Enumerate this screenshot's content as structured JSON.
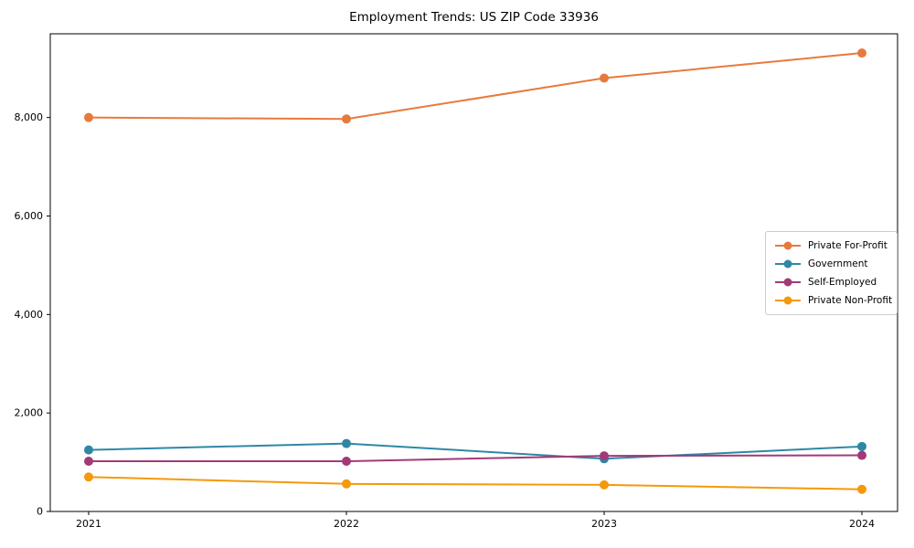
{
  "chart_data": {
    "type": "line",
    "title": "Employment Trends: US ZIP Code 33936",
    "x_tick_labels": [
      "2021",
      "2022",
      "2023",
      "2024"
    ],
    "x": [
      2021,
      2022,
      2023,
      2024
    ],
    "series": [
      {
        "name": "Private For-Profit",
        "color": "#e8793d",
        "values": [
          8000,
          7970,
          8800,
          9310
        ]
      },
      {
        "name": "Government",
        "color": "#2f87a6",
        "values": [
          1250,
          1380,
          1070,
          1320
        ]
      },
      {
        "name": "Self-Employed",
        "color": "#a23a77",
        "values": [
          1020,
          1020,
          1130,
          1140
        ]
      },
      {
        "name": "Private Non-Profit",
        "color": "#f5990b",
        "values": [
          700,
          560,
          540,
          450
        ]
      }
    ],
    "xlabel": "",
    "ylabel": "",
    "ylim": [
      0,
      9700
    ],
    "yticks": [
      0,
      2000,
      4000,
      6000,
      8000
    ],
    "ytick_labels": [
      "0",
      "2,000",
      "4,000",
      "6,000",
      "8,000"
    ],
    "grid": false,
    "legend_position": "center-right",
    "marker": "circle",
    "line_width": 2
  },
  "colors": {
    "background": "#ffffff",
    "axis": "#000000",
    "tick_text": "#000000",
    "legend_border": "#cccccc"
  }
}
